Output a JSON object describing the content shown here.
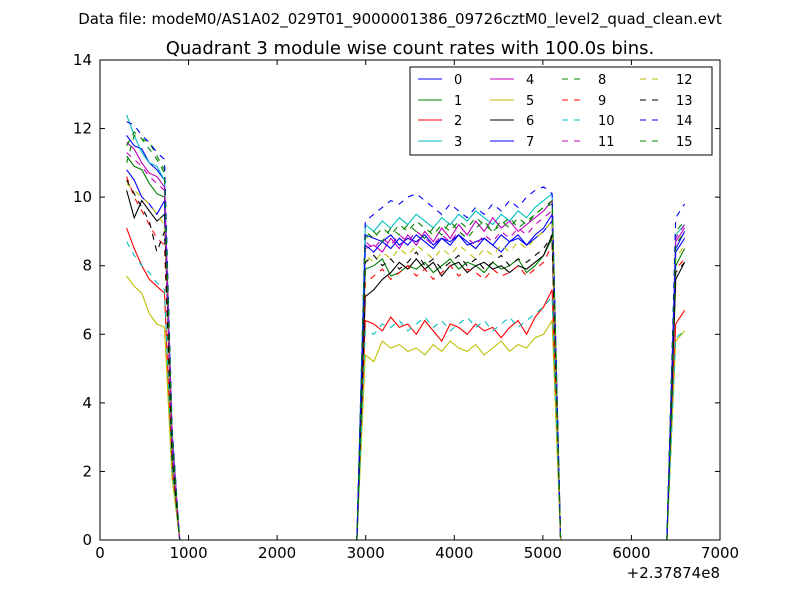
{
  "figure": {
    "suptitle": "Data file: modeM0/AS1A02_029T01_9000001386_09726cztM0_level2_quad_clean.evt"
  },
  "chart_data": {
    "type": "line",
    "title": "Quadrant 3 module wise count rates with 100.0s bins.",
    "xlabel": "",
    "ylabel": "",
    "x_offset_label": "+2.37874e8",
    "xlim": [
      0,
      7000
    ],
    "ylim": [
      0,
      14
    ],
    "x_ticks": [
      0,
      1000,
      2000,
      3000,
      4000,
      5000,
      6000,
      7000
    ],
    "y_ticks": [
      0,
      2,
      4,
      6,
      8,
      10,
      12,
      14
    ],
    "grid": false,
    "legend_position": "top-right",
    "segments": [
      {
        "x_start": 300,
        "x_end": 900
      },
      {
        "x_start": 2900,
        "x_end": 5200
      },
      {
        "x_start": 6400,
        "x_end": 6600
      }
    ],
    "series": [
      {
        "name": "0",
        "color": "#0000ff",
        "dash": "solid",
        "y": [
          [
            11.8,
            11.5,
            11.4,
            11.0,
            10.8,
            10.5,
            3.0,
            0
          ],
          [
            0,
            8.9,
            8.8,
            8.7,
            8.9,
            8.6,
            8.8,
            8.7,
            8.9,
            8.6,
            8.8,
            8.7,
            8.9,
            8.6,
            8.7,
            8.8,
            8.6,
            8.9,
            8.7,
            8.8,
            8.6,
            8.9,
            9.1,
            9.5,
            0
          ],
          [
            0,
            8.5,
            9.0
          ]
        ]
      },
      {
        "name": "1",
        "color": "#008000",
        "dash": "solid",
        "y": [
          [
            11.2,
            10.9,
            10.8,
            10.4,
            10.1,
            10.0,
            2.5,
            0
          ],
          [
            0,
            7.9,
            8.0,
            8.2,
            7.7,
            7.8,
            8.0,
            7.9,
            8.1,
            7.8,
            8.0,
            8.2,
            7.9,
            8.1,
            8.0,
            7.8,
            8.1,
            7.9,
            8.0,
            8.2,
            7.8,
            8.0,
            8.3,
            8.8,
            0
          ],
          [
            0,
            8.0,
            8.5
          ]
        ]
      },
      {
        "name": "2",
        "color": "#ff0000",
        "dash": "solid",
        "y": [
          [
            9.1,
            8.5,
            8.0,
            7.6,
            7.4,
            7.2,
            2.0,
            0
          ],
          [
            0,
            6.4,
            6.3,
            6.1,
            6.5,
            6.2,
            6.3,
            6.0,
            6.4,
            6.1,
            5.8,
            6.3,
            6.2,
            6.0,
            6.3,
            6.1,
            6.2,
            5.9,
            6.2,
            6.4,
            6.0,
            6.5,
            6.8,
            7.3,
            0
          ],
          [
            0,
            6.3,
            6.7
          ]
        ]
      },
      {
        "name": "3",
        "color": "#00bfbf",
        "dash": "solid",
        "y": [
          [
            12.4,
            11.8,
            11.3,
            11.0,
            10.9,
            10.5,
            3.2,
            0
          ],
          [
            0,
            9.2,
            9.0,
            9.3,
            9.1,
            9.4,
            9.2,
            9.5,
            9.3,
            9.1,
            9.4,
            9.2,
            9.5,
            9.3,
            9.6,
            9.4,
            9.2,
            9.5,
            9.3,
            9.6,
            9.4,
            9.7,
            9.9,
            10.1,
            0
          ],
          [
            0,
            8.9,
            9.2
          ]
        ]
      },
      {
        "name": "4",
        "color": "#bf00bf",
        "dash": "solid",
        "y": [
          [
            11.6,
            11.4,
            11.0,
            10.7,
            10.6,
            10.3,
            3.0,
            0
          ],
          [
            0,
            8.5,
            8.6,
            8.4,
            8.8,
            8.5,
            8.9,
            8.6,
            9.0,
            8.7,
            9.1,
            8.8,
            9.2,
            8.9,
            9.3,
            9.0,
            9.4,
            9.1,
            9.3,
            9.0,
            9.2,
            9.4,
            9.6,
            9.9,
            0
          ],
          [
            0,
            8.7,
            9.1
          ]
        ]
      },
      {
        "name": "5",
        "color": "#bfbf00",
        "dash": "solid",
        "y": [
          [
            7.7,
            7.4,
            7.2,
            6.6,
            6.3,
            6.2,
            1.8,
            0
          ],
          [
            0,
            5.4,
            5.2,
            5.8,
            5.6,
            5.7,
            5.5,
            5.6,
            5.4,
            5.7,
            5.5,
            5.8,
            5.6,
            5.5,
            5.7,
            5.4,
            5.6,
            5.8,
            5.5,
            5.7,
            5.6,
            5.9,
            6.0,
            6.4,
            0
          ],
          [
            0,
            5.8,
            6.1
          ]
        ]
      },
      {
        "name": "6",
        "color": "#000000",
        "dash": "solid",
        "y": [
          [
            10.2,
            9.4,
            9.9,
            9.6,
            9.3,
            9.5,
            2.6,
            0
          ],
          [
            0,
            7.1,
            7.3,
            7.6,
            7.8,
            8.1,
            7.9,
            8.2,
            7.9,
            8.1,
            7.7,
            8.0,
            8.1,
            7.8,
            8.0,
            8.1,
            7.9,
            8.0,
            7.8,
            8.0,
            7.9,
            8.1,
            8.3,
            8.9,
            0
          ],
          [
            0,
            7.6,
            8.1
          ]
        ]
      },
      {
        "name": "7",
        "color": "#0000ff",
        "dash": "solid",
        "y": [
          [
            10.8,
            10.5,
            10.0,
            9.8,
            9.5,
            9.9,
            2.7,
            0
          ],
          [
            0,
            8.6,
            8.4,
            8.7,
            8.5,
            8.8,
            8.6,
            8.9,
            8.7,
            8.5,
            8.8,
            8.6,
            8.9,
            8.7,
            8.5,
            8.8,
            8.6,
            8.4,
            8.7,
            8.9,
            8.6,
            8.8,
            9.0,
            9.3,
            0
          ],
          [
            0,
            8.4,
            8.8
          ]
        ]
      },
      {
        "name": "8",
        "color": "#008000",
        "dash": "dashed",
        "y": [
          [
            11.0,
            11.8,
            11.7,
            11.6,
            11.2,
            10.8,
            3.1,
            0
          ],
          [
            0,
            9.0,
            8.8,
            9.1,
            8.9,
            9.2,
            9.0,
            9.3,
            9.1,
            8.9,
            9.2,
            9.0,
            9.3,
            9.1,
            9.4,
            9.2,
            9.0,
            9.3,
            9.1,
            9.4,
            9.2,
            9.5,
            9.7,
            9.8,
            0
          ],
          [
            0,
            9.0,
            9.3
          ]
        ]
      },
      {
        "name": "9",
        "color": "#ff0000",
        "dash": "dashed",
        "y": [
          [
            10.6,
            10.0,
            9.6,
            9.2,
            8.8,
            8.6,
            2.4,
            0
          ],
          [
            0,
            7.5,
            7.7,
            7.9,
            7.6,
            7.8,
            8.0,
            7.7,
            7.9,
            7.6,
            7.8,
            8.0,
            7.7,
            7.9,
            7.8,
            7.6,
            7.9,
            7.7,
            7.8,
            8.0,
            7.7,
            7.9,
            8.1,
            8.6,
            0
          ],
          [
            0,
            7.9,
            8.2
          ]
        ]
      },
      {
        "name": "10",
        "color": "#00bfbf",
        "dash": "dashed",
        "y": [
          [
            8.7,
            8.3,
            8.0,
            7.8,
            7.5,
            7.3,
            2.1,
            0
          ],
          [
            0,
            6.1,
            6.0,
            6.3,
            6.2,
            6.4,
            6.1,
            6.3,
            6.5,
            6.2,
            6.4,
            6.1,
            6.3,
            6.5,
            6.2,
            6.4,
            6.1,
            6.3,
            6.5,
            6.2,
            6.4,
            6.6,
            6.8,
            7.1,
            0
          ],
          [
            0,
            5.9,
            6.1
          ]
        ]
      },
      {
        "name": "11",
        "color": "#bf00bf",
        "dash": "dashed",
        "y": [
          [
            11.3,
            11.1,
            10.9,
            10.6,
            10.4,
            10.2,
            2.9,
            0
          ],
          [
            0,
            8.7,
            8.5,
            8.8,
            8.6,
            8.9,
            8.7,
            9.0,
            8.8,
            8.6,
            8.9,
            8.7,
            9.0,
            8.8,
            8.6,
            8.9,
            8.7,
            9.0,
            8.8,
            9.1,
            8.9,
            9.2,
            9.4,
            9.6,
            0
          ],
          [
            0,
            8.8,
            9.2
          ]
        ]
      },
      {
        "name": "12",
        "color": "#bfbf00",
        "dash": "dashed",
        "y": [
          [
            10.4,
            10.2,
            10.0,
            9.8,
            9.5,
            9.2,
            2.5,
            0
          ],
          [
            0,
            8.3,
            8.1,
            8.4,
            8.2,
            8.5,
            8.3,
            8.6,
            8.4,
            8.2,
            8.5,
            8.3,
            8.6,
            8.4,
            8.2,
            8.5,
            8.3,
            8.6,
            8.4,
            8.7,
            8.5,
            8.8,
            9.0,
            9.3,
            0
          ],
          [
            0,
            8.2,
            8.6
          ]
        ]
      },
      {
        "name": "13",
        "color": "#000000",
        "dash": "dashed",
        "y": [
          [
            10.5,
            10.1,
            9.7,
            9.3,
            8.4,
            9.0,
            2.4,
            0
          ],
          [
            0,
            8.1,
            8.3,
            8.0,
            8.2,
            7.9,
            8.1,
            8.4,
            8.0,
            8.2,
            7.9,
            8.1,
            8.3,
            8.0,
            8.2,
            7.9,
            8.1,
            8.3,
            8.0,
            8.2,
            8.1,
            8.3,
            8.5,
            8.9,
            0
          ],
          [
            0,
            7.8,
            8.1
          ]
        ]
      },
      {
        "name": "14",
        "color": "#0000ff",
        "dash": "dashed",
        "y": [
          [
            12.2,
            12.1,
            11.8,
            11.6,
            11.3,
            11.1,
            3.3,
            0
          ],
          [
            0,
            9.3,
            9.5,
            9.7,
            9.9,
            9.8,
            10.0,
            10.1,
            9.9,
            9.7,
            9.5,
            9.8,
            9.6,
            9.4,
            9.7,
            9.5,
            9.8,
            9.6,
            9.9,
            9.7,
            10.0,
            10.2,
            10.3,
            10.1,
            0
          ],
          [
            0,
            9.4,
            9.8
          ]
        ]
      },
      {
        "name": "15",
        "color": "#008000",
        "dash": "dashed",
        "y": [
          [
            11.5,
            11.9,
            11.7,
            11.4,
            11.1,
            10.7,
            3.1,
            0
          ],
          [
            0,
            8.8,
            9.0,
            8.7,
            9.1,
            8.9,
            9.2,
            9.0,
            8.8,
            9.1,
            8.9,
            9.3,
            9.0,
            8.8,
            9.1,
            9.3,
            9.0,
            9.2,
            9.4,
            9.1,
            9.3,
            9.5,
            9.7,
            9.9,
            0
          ],
          [
            0,
            8.6,
            9.0
          ]
        ]
      }
    ]
  }
}
